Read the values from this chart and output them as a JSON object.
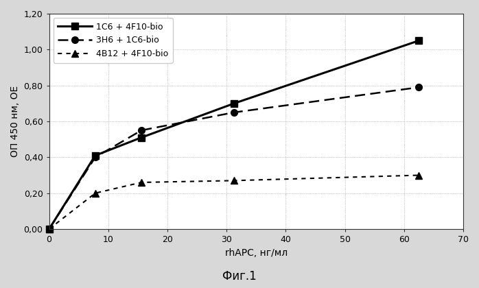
{
  "series": [
    {
      "label": "1C6 + 4F10-bio",
      "x": [
        0,
        7.8,
        15.6,
        31.25,
        62.5
      ],
      "y": [
        0.0,
        0.41,
        0.51,
        0.7,
        1.05
      ],
      "linestyle": "-",
      "linewidth": 2.2,
      "color": "#000000",
      "marker": "s",
      "markersize": 7,
      "dashes": null
    },
    {
      "label": "3H6 + 1C6-bio",
      "x": [
        0,
        7.8,
        15.6,
        31.25,
        62.5
      ],
      "y": [
        0.0,
        0.4,
        0.55,
        0.65,
        0.79
      ],
      "linestyle": "--",
      "linewidth": 1.8,
      "color": "#000000",
      "marker": "o",
      "markersize": 7,
      "dashes": [
        6,
        3
      ]
    },
    {
      "label": "4B12 + 4F10-bio",
      "x": [
        0,
        7.8,
        15.6,
        31.25,
        62.5
      ],
      "y": [
        0.0,
        0.2,
        0.26,
        0.27,
        0.3
      ],
      "linestyle": "--",
      "linewidth": 1.5,
      "color": "#000000",
      "marker": "^",
      "markersize": 7,
      "dashes": [
        3,
        3
      ]
    }
  ],
  "xlabel": "rhAPC, нг/мл",
  "ylabel": "ОП 450 нм, ОЕ",
  "xlim": [
    0,
    70
  ],
  "ylim": [
    0.0,
    1.2
  ],
  "xticks": [
    0,
    10,
    20,
    30,
    40,
    50,
    60,
    70
  ],
  "yticks": [
    0.0,
    0.2,
    0.4,
    0.6,
    0.8,
    1.0,
    1.2
  ],
  "ytick_labels": [
    "0,00",
    "0,20",
    "0,40",
    "0,60",
    "0,80",
    "1,00",
    "1,20"
  ],
  "xtick_labels": [
    "0",
    "10",
    "20",
    "30",
    "40",
    "50",
    "60",
    "70"
  ],
  "grid_linestyle": ":",
  "grid_color": "#aaaaaa",
  "grid_linewidth": 0.6,
  "legend_loc": "upper left",
  "plot_bg": "#ffffff",
  "fig_bg": "#d8d8d8",
  "caption": "Фиг.1",
  "caption_fontsize": 12,
  "tick_fontsize": 9,
  "label_fontsize": 10
}
